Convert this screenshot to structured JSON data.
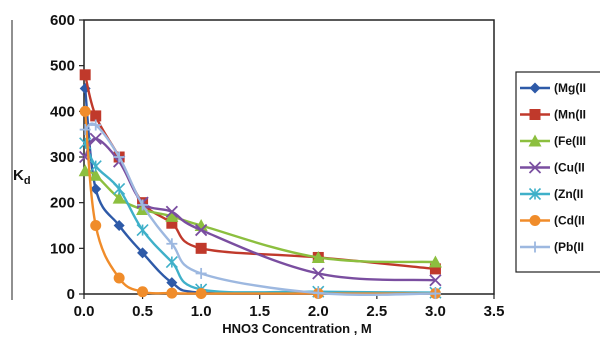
{
  "chart_data": {
    "type": "line",
    "xlabel": "HNO3  Concentration , M",
    "ylabel": "K",
    "ylabel_sub": "d",
    "xlim": [
      0,
      3.5
    ],
    "ylim": [
      0,
      600
    ],
    "xticks": [
      "0.0",
      "0.5",
      "1.0",
      "1.5",
      "2.0",
      "2.5",
      "3.0",
      "3.5"
    ],
    "yticks": [
      "0",
      "100",
      "200",
      "300",
      "400",
      "500",
      "600"
    ],
    "grid": false,
    "legend_position": "right",
    "series": [
      {
        "name": "(Mg(II",
        "color": "#2e5aa8",
        "marker": "diamond",
        "x": [
          0.01,
          0.1,
          0.3,
          0.5,
          0.75,
          1.0,
          2.0,
          3.0
        ],
        "y": [
          450,
          230,
          150,
          90,
          25,
          3,
          1,
          1
        ]
      },
      {
        "name": "(Mn(II",
        "color": "#c0392b",
        "marker": "square",
        "x": [
          0.01,
          0.1,
          0.3,
          0.5,
          0.75,
          1.0,
          2.0,
          3.0
        ],
        "y": [
          480,
          390,
          300,
          200,
          155,
          100,
          80,
          55
        ]
      },
      {
        "name": "(Fe(III",
        "color": "#8cbf3f",
        "marker": "triangle",
        "x": [
          0.01,
          0.1,
          0.3,
          0.5,
          0.75,
          1.0,
          2.0,
          3.0
        ],
        "y": [
          270,
          260,
          210,
          185,
          170,
          150,
          80,
          70
        ]
      },
      {
        "name": "(Cu(II",
        "color": "#7a4ea0",
        "marker": "x",
        "x": [
          0.01,
          0.1,
          0.3,
          0.5,
          0.75,
          1.0,
          2.0,
          3.0
        ],
        "y": [
          300,
          340,
          290,
          200,
          180,
          140,
          45,
          30
        ]
      },
      {
        "name": "(Zn(II",
        "color": "#3fb0c9",
        "marker": "star",
        "x": [
          0.01,
          0.1,
          0.3,
          0.5,
          0.75,
          1.0,
          2.0,
          3.0
        ],
        "y": [
          330,
          280,
          230,
          140,
          70,
          10,
          5,
          3
        ]
      },
      {
        "name": "(Cd(II",
        "color": "#f08c2a",
        "marker": "circle",
        "x": [
          0.01,
          0.1,
          0.3,
          0.5,
          0.75,
          1.0,
          2.0,
          3.0
        ],
        "y": [
          400,
          150,
          35,
          5,
          2,
          1,
          1,
          1
        ]
      },
      {
        "name": "(Pb(II",
        "color": "#9db8e0",
        "marker": "plus",
        "x": [
          0.01,
          0.1,
          0.3,
          0.5,
          0.75,
          1.0,
          2.0,
          3.0
        ],
        "y": [
          360,
          370,
          300,
          195,
          110,
          45,
          2,
          1
        ]
      }
    ]
  }
}
